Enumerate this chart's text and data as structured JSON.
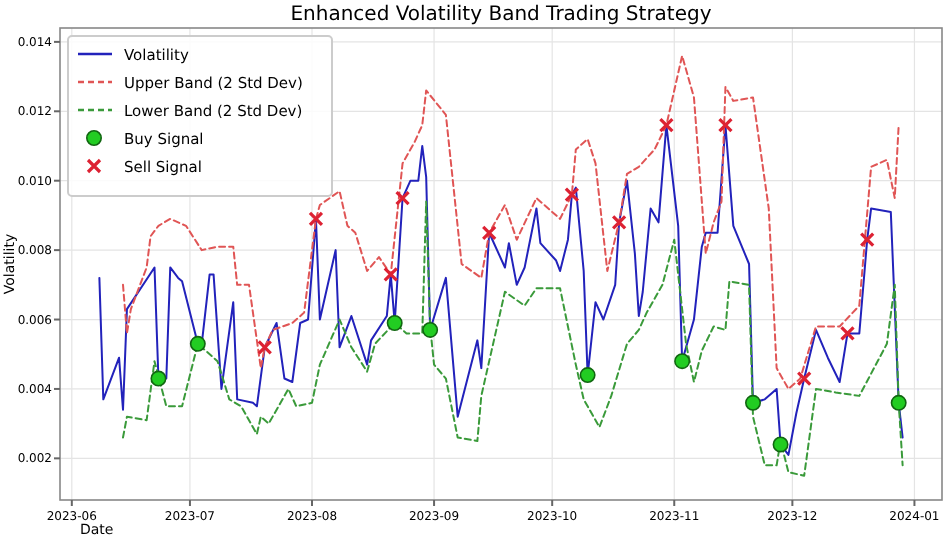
{
  "chart_data": {
    "type": "line",
    "title": "Enhanced Volatility Band Trading Strategy",
    "xlabel": "Date",
    "ylabel": "Volatility",
    "xlim": [
      "2023-05-29",
      "2024-01-08"
    ],
    "xticks": [
      "2023-06",
      "2023-07",
      "2023-08",
      "2023-09",
      "2023-10",
      "2023-11",
      "2023-12",
      "2024-01"
    ],
    "ylim": [
      0.0008,
      0.0144
    ],
    "yticks": [
      0.002,
      0.004,
      0.006,
      0.008,
      {
        "value": 0.01,
        "label": "0.010"
      },
      0.012,
      0.014
    ],
    "grid": true,
    "legend": "top left",
    "series": [
      {
        "name": "Volatility",
        "color": "#2222bb",
        "line_style": "solid",
        "x": [
          "2023-06-08",
          "2023-06-09",
          "2023-06-13",
          "2023-06-14",
          "2023-06-15",
          "2023-06-22",
          "2023-06-23",
          "2023-06-25",
          "2023-06-26",
          "2023-06-28",
          "2023-06-29",
          "2023-07-03",
          "2023-07-04",
          "2023-07-06",
          "2023-07-07",
          "2023-07-09",
          "2023-07-12",
          "2023-07-13",
          "2023-07-17",
          "2023-07-18",
          "2023-07-20",
          "2023-07-23",
          "2023-07-25",
          "2023-07-27",
          "2023-07-29",
          "2023-07-31",
          "2023-08-02",
          "2023-08-03",
          "2023-08-07",
          "2023-08-08",
          "2023-08-11",
          "2023-08-15",
          "2023-08-16",
          "2023-08-20",
          "2023-08-21",
          "2023-08-22",
          "2023-08-24",
          "2023-08-26",
          "2023-08-28",
          "2023-08-29",
          "2023-08-30",
          "2023-08-31",
          "2023-09-04",
          "2023-09-07",
          "2023-09-12",
          "2023-09-13",
          "2023-09-15",
          "2023-09-19",
          "2023-09-20",
          "2023-09-22",
          "2023-09-24",
          "2023-09-27",
          "2023-09-28",
          "2023-10-02",
          "2023-10-03",
          "2023-10-05",
          "2023-10-06",
          "2023-10-07",
          "2023-10-09",
          "2023-10-10",
          "2023-10-12",
          "2023-10-14",
          "2023-10-17",
          "2023-10-18",
          "2023-10-20",
          "2023-10-22",
          "2023-10-23",
          "2023-10-24",
          "2023-10-26",
          "2023-10-28",
          "2023-10-30",
          "2023-11-02",
          "2023-11-03",
          "2023-11-06",
          "2023-11-08",
          "2023-11-09",
          "2023-11-12",
          "2023-11-14",
          "2023-11-16",
          "2023-11-20",
          "2023-11-21",
          "2023-11-24",
          "2023-11-27",
          "2023-11-28",
          "2023-11-30",
          "2023-12-02",
          "2023-12-04",
          "2023-12-07",
          "2023-12-10",
          "2023-12-13",
          "2023-12-15",
          "2023-12-18",
          "2023-12-20",
          "2023-12-21",
          "2023-12-26",
          "2023-12-28",
          "2023-12-29"
        ],
        "values": [
          0.0072,
          0.0037,
          0.0049,
          0.0034,
          0.0063,
          0.0075,
          0.0043,
          0.0043,
          0.0075,
          0.0072,
          0.0071,
          0.0053,
          0.0053,
          0.0073,
          0.0073,
          0.004,
          0.0065,
          0.0037,
          0.0036,
          0.0035,
          0.0052,
          0.0059,
          0.0043,
          0.0042,
          0.0059,
          0.006,
          0.0089,
          0.006,
          0.008,
          0.0052,
          0.0061,
          0.0047,
          0.0054,
          0.0061,
          0.0073,
          0.0059,
          0.0095,
          0.01,
          0.01,
          0.011,
          0.0101,
          0.0057,
          0.0072,
          0.0032,
          0.0054,
          0.0046,
          0.0085,
          0.0075,
          0.0082,
          0.007,
          0.0075,
          0.0092,
          0.0082,
          0.0077,
          0.0074,
          0.0083,
          0.0096,
          0.0098,
          0.0074,
          0.0044,
          0.0065,
          0.006,
          0.007,
          0.0088,
          0.01,
          0.0079,
          0.0061,
          0.0068,
          0.0092,
          0.0088,
          0.0116,
          0.0087,
          0.0048,
          0.006,
          0.0081,
          0.0085,
          0.0085,
          0.0116,
          0.0087,
          0.0076,
          0.0036,
          0.0037,
          0.004,
          0.0024,
          0.0021,
          0.0033,
          0.0043,
          0.0057,
          0.0049,
          0.0042,
          0.0056,
          0.0056,
          0.0083,
          0.0092,
          0.0091,
          0.0036,
          0.0026
        ]
      },
      {
        "name": "Upper Band (2 Std Dev)",
        "color": "#e05555",
        "line_style": "dashed",
        "x": [
          "2023-06-14",
          "2023-06-15",
          "2023-06-16",
          "2023-06-20",
          "2023-06-21",
          "2023-06-23",
          "2023-06-26",
          "2023-06-30",
          "2023-07-04",
          "2023-07-08",
          "2023-07-12",
          "2023-07-13",
          "2023-07-16",
          "2023-07-19",
          "2023-07-20",
          "2023-07-22",
          "2023-07-27",
          "2023-07-30",
          "2023-08-02",
          "2023-08-03",
          "2023-08-08",
          "2023-08-10",
          "2023-08-12",
          "2023-08-15",
          "2023-08-18",
          "2023-08-21",
          "2023-08-24",
          "2023-08-27",
          "2023-08-29",
          "2023-08-30",
          "2023-09-04",
          "2023-09-08",
          "2023-09-13",
          "2023-09-15",
          "2023-09-19",
          "2023-09-22",
          "2023-09-27",
          "2023-09-29",
          "2023-10-03",
          "2023-10-06",
          "2023-10-07",
          "2023-10-10",
          "2023-10-12",
          "2023-10-15",
          "2023-10-18",
          "2023-10-20",
          "2023-10-23",
          "2023-10-27",
          "2023-10-30",
          "2023-11-03",
          "2023-11-06",
          "2023-11-09",
          "2023-11-11",
          "2023-11-13",
          "2023-11-14",
          "2023-11-16",
          "2023-11-21",
          "2023-11-25",
          "2023-11-27",
          "2023-11-30",
          "2023-12-03",
          "2023-12-07",
          "2023-12-13",
          "2023-12-18",
          "2023-12-21",
          "2023-12-25",
          "2023-12-27",
          "2023-12-28"
        ],
        "values": [
          0.007,
          0.0056,
          0.0063,
          0.0075,
          0.0084,
          0.0087,
          0.0089,
          0.0087,
          0.008,
          0.0081,
          0.0081,
          0.007,
          0.007,
          0.0046,
          0.0052,
          0.0057,
          0.0059,
          0.0062,
          0.0089,
          0.0093,
          0.0097,
          0.0087,
          0.0085,
          0.0074,
          0.0078,
          0.0073,
          0.0105,
          0.0111,
          0.0116,
          0.0126,
          0.0119,
          0.0076,
          0.0072,
          0.0085,
          0.0093,
          0.0083,
          0.0095,
          0.0093,
          0.0089,
          0.0096,
          0.0109,
          0.0112,
          0.0105,
          0.0074,
          0.0088,
          0.0102,
          0.0104,
          0.0109,
          0.0116,
          0.0136,
          0.0124,
          0.0079,
          0.0088,
          0.0094,
          0.0127,
          0.0123,
          0.0124,
          0.0092,
          0.0046,
          0.004,
          0.0043,
          0.0058,
          0.0058,
          0.0064,
          0.0104,
          0.0106,
          0.0095,
          0.0116
        ]
      },
      {
        "name": "Lower Band (2 Std Dev)",
        "color": "#3a9a3a",
        "line_style": "dashed",
        "x": [
          "2023-06-14",
          "2023-06-15",
          "2023-06-20",
          "2023-06-22",
          "2023-06-25",
          "2023-06-29",
          "2023-07-03",
          "2023-07-08",
          "2023-07-11",
          "2023-07-14",
          "2023-07-18",
          "2023-07-19",
          "2023-07-21",
          "2023-07-26",
          "2023-07-28",
          "2023-08-01",
          "2023-08-03",
          "2023-08-08",
          "2023-08-11",
          "2023-08-15",
          "2023-08-17",
          "2023-08-22",
          "2023-08-25",
          "2023-08-29",
          "2023-08-30",
          "2023-08-31",
          "2023-09-01",
          "2023-09-04",
          "2023-09-07",
          "2023-09-12",
          "2023-09-13",
          "2023-09-19",
          "2023-09-24",
          "2023-09-27",
          "2023-10-03",
          "2023-10-07",
          "2023-10-09",
          "2023-10-13",
          "2023-10-16",
          "2023-10-20",
          "2023-10-23",
          "2023-10-25",
          "2023-10-29",
          "2023-11-01",
          "2023-11-04",
          "2023-11-06",
          "2023-11-08",
          "2023-11-11",
          "2023-11-14",
          "2023-11-15",
          "2023-11-20",
          "2023-11-21",
          "2023-11-24",
          "2023-11-27",
          "2023-11-28",
          "2023-11-30",
          "2023-12-04",
          "2023-12-07",
          "2023-12-12",
          "2023-12-18",
          "2023-12-25",
          "2023-12-27",
          "2023-12-28",
          "2023-12-29"
        ],
        "values": [
          0.0026,
          0.0032,
          0.0031,
          0.0048,
          0.0035,
          0.0035,
          0.0053,
          0.0048,
          0.0037,
          0.0035,
          0.0027,
          0.0032,
          0.003,
          0.004,
          0.0035,
          0.0036,
          0.0047,
          0.006,
          0.0052,
          0.0045,
          0.0053,
          0.0059,
          0.0056,
          0.0056,
          0.0094,
          0.0058,
          0.0047,
          0.0043,
          0.0026,
          0.0025,
          0.0038,
          0.0068,
          0.0064,
          0.0069,
          0.0069,
          0.0047,
          0.0037,
          0.0029,
          0.0038,
          0.0053,
          0.0057,
          0.0062,
          0.007,
          0.0083,
          0.0053,
          0.0042,
          0.0051,
          0.0058,
          0.0057,
          0.0071,
          0.007,
          0.0032,
          0.0018,
          0.0018,
          0.0025,
          0.0016,
          0.0015,
          0.004,
          0.0039,
          0.0038,
          0.0053,
          0.007,
          0.0036,
          0.0018
        ]
      },
      {
        "name": "Buy Signal",
        "type": "scatter",
        "color": "#22cc22",
        "marker": "circle",
        "x": [
          "2023-06-23",
          "2023-07-03",
          "2023-08-22",
          "2023-08-31",
          "2023-10-10",
          "2023-11-03",
          "2023-11-21",
          "2023-11-28",
          "2023-12-28"
        ],
        "values": [
          0.0043,
          0.0053,
          0.0059,
          0.0057,
          0.0044,
          0.0048,
          0.0036,
          0.0024,
          0.0036
        ]
      },
      {
        "name": "Sell Signal",
        "type": "scatter",
        "color": "#dd2233",
        "marker": "cross",
        "x": [
          "2023-07-20",
          "2023-08-02",
          "2023-08-21",
          "2023-08-24",
          "2023-09-15",
          "2023-10-06",
          "2023-10-18",
          "2023-10-30",
          "2023-11-14",
          "2023-12-04",
          "2023-12-15",
          "2023-12-20"
        ],
        "values": [
          0.0052,
          0.0089,
          0.0073,
          0.0095,
          0.0085,
          0.0096,
          0.0088,
          0.0116,
          0.0116,
          0.0043,
          0.0056,
          0.0083
        ]
      }
    ]
  }
}
